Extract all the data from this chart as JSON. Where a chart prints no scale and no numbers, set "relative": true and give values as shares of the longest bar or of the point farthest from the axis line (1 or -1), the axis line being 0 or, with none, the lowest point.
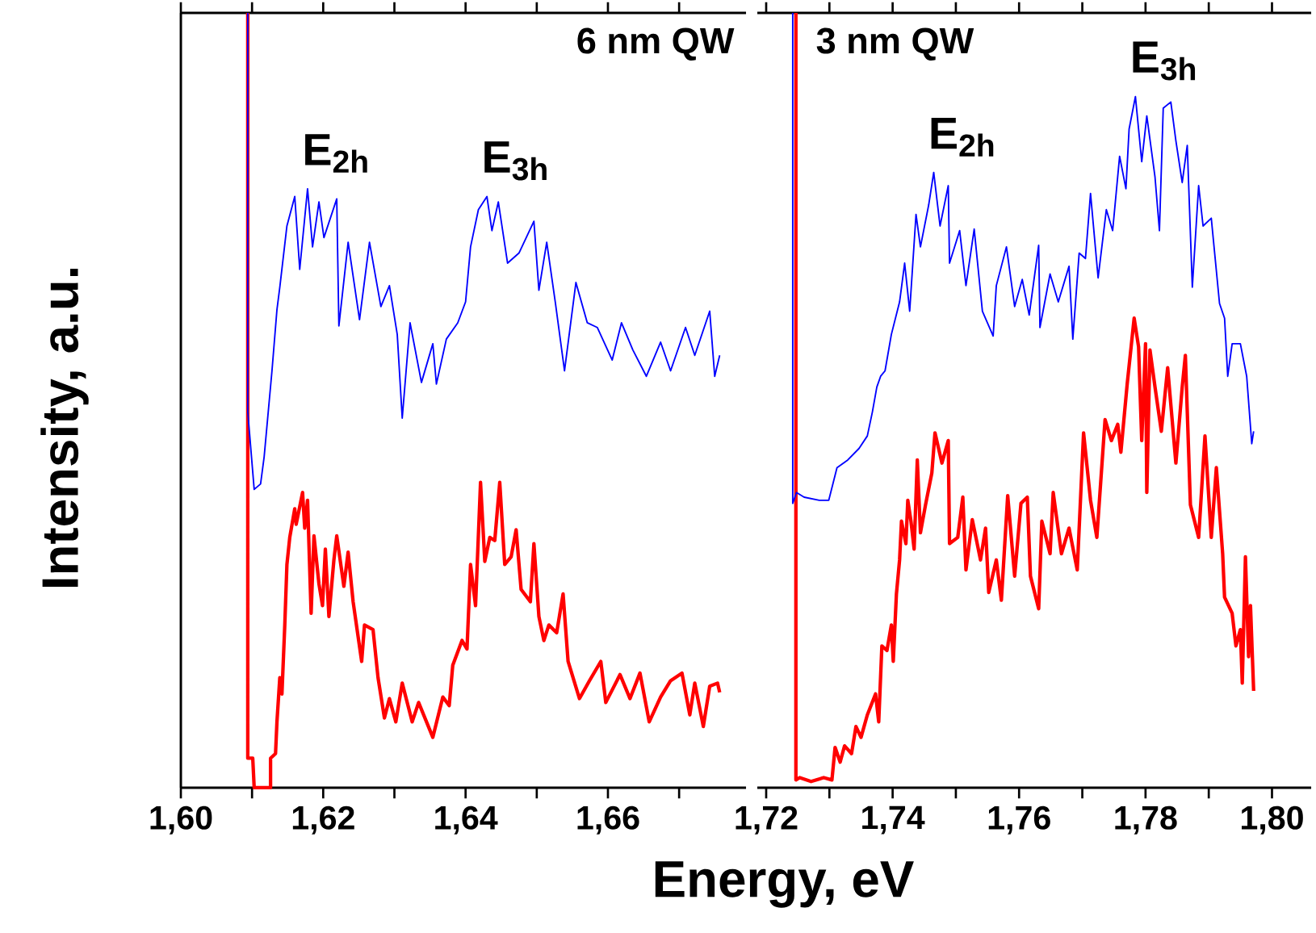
{
  "chart_data": [
    {
      "type": "line",
      "relative": true,
      "title": "6 nm QW",
      "ylabel": "Intensity, a.u.",
      "tick_labels": "x",
      "xlim": [
        1.6,
        1.6794
      ],
      "xticks": [
        {
          "value": 1.6,
          "label": "1,60"
        },
        {
          "value": 1.61,
          "label": null
        },
        {
          "value": 1.62,
          "label": "1,62"
        },
        {
          "value": 1.63,
          "label": null
        },
        {
          "value": 1.64,
          "label": "1,64"
        },
        {
          "value": 1.65,
          "label": null
        },
        {
          "value": 1.66,
          "label": "1,66"
        },
        {
          "value": 1.67,
          "label": null
        }
      ],
      "annotations": [
        {
          "text": "E$_{2h}$",
          "x": 1.6178,
          "y": 0.773
        },
        {
          "text": "E$_{3h}$",
          "x": 1.643,
          "y": 0.763
        }
      ],
      "series": [
        {
          "color": "#0000ff",
          "x": [
            1.6094,
            1.6094,
            1.6103,
            1.6112,
            1.6117,
            1.6128,
            1.6135,
            1.6139,
            1.6149,
            1.616,
            1.6167,
            1.6178,
            1.6185,
            1.6194,
            1.6201,
            1.6219,
            1.6222,
            1.6235,
            1.6251,
            1.6265,
            1.6281,
            1.6293,
            1.6304,
            1.6311,
            1.6322,
            1.6338,
            1.6354,
            1.6359,
            1.6373,
            1.6389,
            1.64,
            1.6407,
            1.6418,
            1.643,
            1.6437,
            1.6446,
            1.6459,
            1.6475,
            1.6496,
            1.6503,
            1.6514,
            1.6526,
            1.6539,
            1.6555,
            1.6571,
            1.6585,
            1.6606,
            1.6619,
            1.6635,
            1.6654,
            1.6674,
            1.6688,
            1.6709,
            1.6722,
            1.6743,
            1.675,
            1.6757
          ],
          "values": [
            1.0,
            0.485,
            0.385,
            0.392,
            0.427,
            0.538,
            0.617,
            0.646,
            0.725,
            0.763,
            0.669,
            0.773,
            0.698,
            0.756,
            0.71,
            0.76,
            0.596,
            0.704,
            0.604,
            0.704,
            0.621,
            0.648,
            0.585,
            0.477,
            0.6,
            0.523,
            0.573,
            0.521,
            0.579,
            0.6,
            0.627,
            0.698,
            0.746,
            0.763,
            0.719,
            0.756,
            0.677,
            0.69,
            0.731,
            0.642,
            0.704,
            0.627,
            0.538,
            0.652,
            0.6,
            0.594,
            0.552,
            0.6,
            0.565,
            0.531,
            0.575,
            0.538,
            0.594,
            0.558,
            0.615,
            0.531,
            0.558
          ]
        },
        {
          "color": "#ff0000",
          "x": [
            1.6094,
            1.6094,
            1.6101,
            1.6103,
            1.6126,
            1.6126,
            1.6133,
            1.6135,
            1.6139,
            1.6142,
            1.6146,
            1.6149,
            1.6153,
            1.616,
            1.6162,
            1.6171,
            1.6174,
            1.6178,
            1.6183,
            1.6187,
            1.6194,
            1.6199,
            1.6203,
            1.6208,
            1.6215,
            1.6219,
            1.6229,
            1.6235,
            1.6242,
            1.6254,
            1.6258,
            1.627,
            1.6277,
            1.6286,
            1.6293,
            1.6302,
            1.6311,
            1.6325,
            1.6334,
            1.6354,
            1.6368,
            1.6377,
            1.6382,
            1.6395,
            1.6402,
            1.6407,
            1.6414,
            1.6421,
            1.6427,
            1.6434,
            1.6441,
            1.6448,
            1.6455,
            1.6464,
            1.6471,
            1.6478,
            1.6491,
            1.6496,
            1.6503,
            1.651,
            1.6517,
            1.6528,
            1.6537,
            1.6544,
            1.656,
            1.6574,
            1.659,
            1.6597,
            1.6617,
            1.6631,
            1.6645,
            1.6658,
            1.6674,
            1.6688,
            1.6704,
            1.6715,
            1.6722,
            1.6734,
            1.6743,
            1.6754,
            1.6757
          ],
          "values": [
            1.0,
            0.038,
            0.038,
            0,
            0,
            0.038,
            0.044,
            0.085,
            0.142,
            0.121,
            0.21,
            0.288,
            0.323,
            0.36,
            0.34,
            0.381,
            0.335,
            0.371,
            0.225,
            0.325,
            0.263,
            0.235,
            0.308,
            0.221,
            0.294,
            0.325,
            0.26,
            0.304,
            0.24,
            0.163,
            0.21,
            0.204,
            0.142,
            0.09,
            0.115,
            0.085,
            0.135,
            0.085,
            0.11,
            0.065,
            0.117,
            0.106,
            0.158,
            0.19,
            0.179,
            0.288,
            0.235,
            0.394,
            0.292,
            0.323,
            0.319,
            0.394,
            0.288,
            0.298,
            0.333,
            0.256,
            0.24,
            0.315,
            0.221,
            0.19,
            0.21,
            0.2,
            0.25,
            0.163,
            0.115,
            0.138,
            0.163,
            0.11,
            0.146,
            0.115,
            0.148,
            0.085,
            0.117,
            0.138,
            0.148,
            0.094,
            0.135,
            0.079,
            0.131,
            0.135,
            0.123
          ]
        }
      ]
    },
    {
      "type": "line",
      "relative": true,
      "title": "3 nm QW",
      "xlabel": "Energy, eV",
      "tick_labels": "x",
      "xlim": [
        1.7186,
        1.8062
      ],
      "xticks": [
        {
          "value": 1.72,
          "label": "1,72"
        },
        {
          "value": 1.73,
          "label": null
        },
        {
          "value": 1.74,
          "label": "1,74"
        },
        {
          "value": 1.75,
          "label": null
        },
        {
          "value": 1.76,
          "label": "1,76"
        },
        {
          "value": 1.77,
          "label": null
        },
        {
          "value": 1.78,
          "label": "1,78"
        },
        {
          "value": 1.79,
          "label": null
        },
        {
          "value": 1.8,
          "label": "1,80"
        }
      ],
      "annotations": [
        {
          "text": "E$_{2h}$",
          "x": 1.7465,
          "y": 0.794
        },
        {
          "text": "E$_{3h}$",
          "x": 1.7784,
          "y": 0.892
        }
      ],
      "series": [
        {
          "color": "#0000ff",
          "x": [
            1.7242,
            1.7242,
            1.7248,
            1.726,
            1.7284,
            1.7299,
            1.7312,
            1.7329,
            1.7347,
            1.736,
            1.7368,
            1.7375,
            1.7381,
            1.7388,
            1.7398,
            1.7411,
            1.7419,
            1.7427,
            1.7437,
            1.7444,
            1.7457,
            1.7465,
            1.7475,
            1.7488,
            1.749,
            1.7506,
            1.7516,
            1.7529,
            1.7542,
            1.7559,
            1.7564,
            1.758,
            1.7593,
            1.7605,
            1.7616,
            1.7631,
            1.7633,
            1.7649,
            1.7662,
            1.7679,
            1.7685,
            1.7695,
            1.7705,
            1.7713,
            1.7725,
            1.7738,
            1.7748,
            1.7759,
            1.7769,
            1.7774,
            1.7784,
            1.7794,
            1.7802,
            1.7815,
            1.7822,
            1.7828,
            1.784,
            1.7848,
            1.7858,
            1.7866,
            1.7874,
            1.7884,
            1.7891,
            1.7904,
            1.7917,
            1.7925,
            1.793,
            1.7937,
            1.795,
            1.796,
            1.7968,
            1.7971
          ],
          "values": [
            1.0,
            0.367,
            0.381,
            0.375,
            0.371,
            0.371,
            0.413,
            0.423,
            0.438,
            0.454,
            0.485,
            0.517,
            0.531,
            0.538,
            0.585,
            0.627,
            0.677,
            0.615,
            0.74,
            0.698,
            0.752,
            0.794,
            0.725,
            0.777,
            0.677,
            0.719,
            0.648,
            0.721,
            0.615,
            0.583,
            0.648,
            0.698,
            0.621,
            0.656,
            0.61,
            0.7,
            0.594,
            0.663,
            0.627,
            0.673,
            0.579,
            0.69,
            0.683,
            0.767,
            0.658,
            0.746,
            0.719,
            0.815,
            0.773,
            0.85,
            0.892,
            0.808,
            0.867,
            0.788,
            0.719,
            0.877,
            0.885,
            0.835,
            0.781,
            0.829,
            0.646,
            0.777,
            0.725,
            0.735,
            0.625,
            0.606,
            0.531,
            0.573,
            0.573,
            0.531,
            0.444,
            0.46
          ]
        },
        {
          "color": "#ff0000",
          "x": [
            1.7247,
            1.7247,
            1.7253,
            1.7271,
            1.7291,
            1.7304,
            1.7309,
            1.7317,
            1.7324,
            1.7335,
            1.7342,
            1.735,
            1.736,
            1.7373,
            1.7378,
            1.7383,
            1.7391,
            1.7398,
            1.7401,
            1.7406,
            1.7411,
            1.7414,
            1.7421,
            1.7424,
            1.7429,
            1.7434,
            1.7439,
            1.7444,
            1.7452,
            1.7462,
            1.7467,
            1.7478,
            1.7488,
            1.749,
            1.7503,
            1.7511,
            1.7516,
            1.7526,
            1.7539,
            1.7547,
            1.7552,
            1.7564,
            1.7572,
            1.7582,
            1.7593,
            1.7603,
            1.7613,
            1.7618,
            1.7631,
            1.7636,
            1.7649,
            1.7654,
            1.7667,
            1.7679,
            1.7692,
            1.7702,
            1.7713,
            1.7723,
            1.7736,
            1.7746,
            1.7756,
            1.7761,
            1.7771,
            1.7782,
            1.7789,
            1.7794,
            1.78,
            1.7802,
            1.7807,
            1.7815,
            1.7825,
            1.7835,
            1.7848,
            1.7858,
            1.7863,
            1.7871,
            1.7884,
            1.7894,
            1.7904,
            1.7912,
            1.7922,
            1.7925,
            1.7937,
            1.7943,
            1.795,
            1.7953,
            1.7958,
            1.7963,
            1.7966,
            1.7971
          ],
          "values": [
            1.0,
            0.01,
            0.013,
            0.008,
            0.013,
            0.01,
            0.052,
            0.033,
            0.054,
            0.044,
            0.079,
            0.065,
            0.094,
            0.121,
            0.085,
            0.183,
            0.177,
            0.21,
            0.163,
            0.25,
            0.294,
            0.344,
            0.315,
            0.371,
            0.344,
            0.308,
            0.423,
            0.329,
            0.365,
            0.406,
            0.458,
            0.419,
            0.448,
            0.315,
            0.323,
            0.375,
            0.281,
            0.346,
            0.294,
            0.335,
            0.252,
            0.294,
            0.242,
            0.377,
            0.273,
            0.367,
            0.375,
            0.273,
            0.231,
            0.344,
            0.302,
            0.381,
            0.302,
            0.335,
            0.281,
            0.458,
            0.371,
            0.323,
            0.475,
            0.448,
            0.469,
            0.433,
            0.521,
            0.606,
            0.569,
            0.448,
            0.573,
            0.381,
            0.565,
            0.517,
            0.46,
            0.542,
            0.419,
            0.517,
            0.558,
            0.365,
            0.323,
            0.454,
            0.323,
            0.413,
            0.302,
            0.246,
            0.225,
            0.183,
            0.204,
            0.135,
            0.298,
            0.169,
            0.235,
            0.125
          ]
        }
      ]
    }
  ]
}
